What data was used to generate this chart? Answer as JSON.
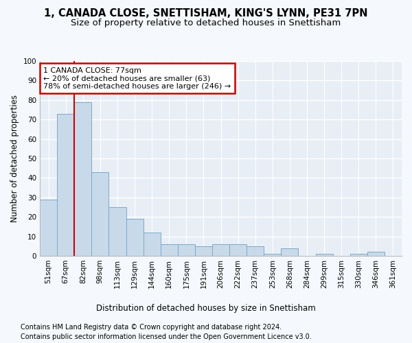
{
  "title_line1": "1, CANADA CLOSE, SNETTISHAM, KING'S LYNN, PE31 7PN",
  "title_line2": "Size of property relative to detached houses in Snettisham",
  "xlabel": "Distribution of detached houses by size in Snettisham",
  "ylabel": "Number of detached properties",
  "categories": [
    "51sqm",
    "67sqm",
    "82sqm",
    "98sqm",
    "113sqm",
    "129sqm",
    "144sqm",
    "160sqm",
    "175sqm",
    "191sqm",
    "206sqm",
    "222sqm",
    "237sqm",
    "253sqm",
    "268sqm",
    "284sqm",
    "299sqm",
    "315sqm",
    "330sqm",
    "346sqm",
    "361sqm"
  ],
  "values": [
    29,
    73,
    79,
    43,
    25,
    19,
    12,
    6,
    6,
    5,
    6,
    6,
    5,
    1,
    4,
    0,
    1,
    0,
    1,
    2,
    0
  ],
  "bar_color": "#c8d9ea",
  "bar_edge_color": "#7aaac8",
  "marker_label": "1 CANADA CLOSE: 77sqm",
  "annotation_line1": "← 20% of detached houses are smaller (63)",
  "annotation_line2": "78% of semi-detached houses are larger (246) →",
  "marker_line_color": "#cc0000",
  "annotation_box_edge_color": "#cc0000",
  "ylim": [
    0,
    100
  ],
  "yticks": [
    0,
    10,
    20,
    30,
    40,
    50,
    60,
    70,
    80,
    90,
    100
  ],
  "footnote_line1": "Contains HM Land Registry data © Crown copyright and database right 2024.",
  "footnote_line2": "Contains public sector information licensed under the Open Government Licence v3.0.",
  "plot_bg_color": "#e8eef5",
  "fig_bg_color": "#f5f8fc",
  "grid_color": "#ffffff",
  "title_fontsize": 10.5,
  "subtitle_fontsize": 9.5,
  "axis_label_fontsize": 8.5,
  "tick_fontsize": 7.5,
  "annotation_fontsize": 8,
  "footnote_fontsize": 7
}
